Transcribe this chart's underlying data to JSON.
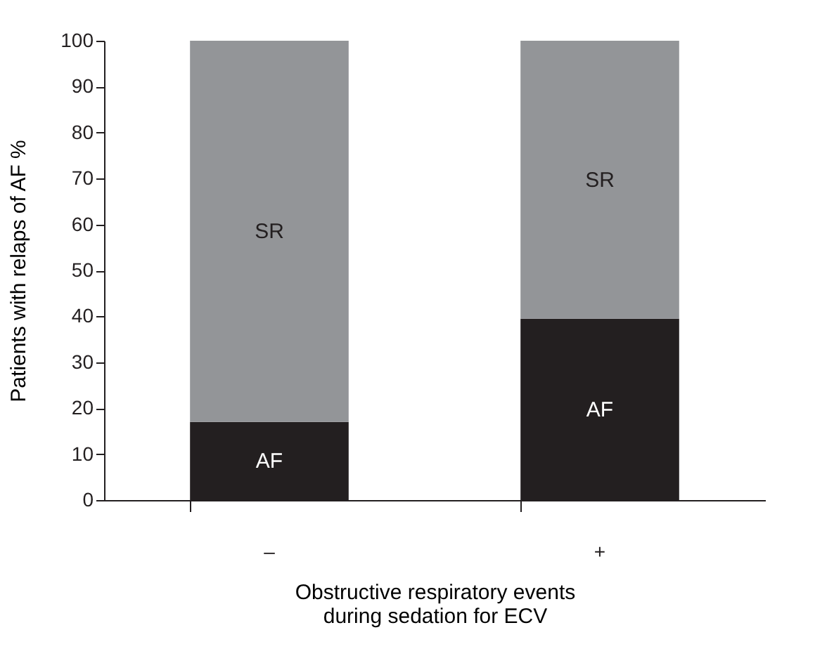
{
  "chart_data": {
    "type": "bar",
    "stacked": true,
    "categories": [
      "–",
      "+"
    ],
    "series": [
      {
        "name": "AF",
        "color": "#231f20",
        "values": [
          17,
          39.5
        ]
      },
      {
        "name": "SR",
        "color": "#939598",
        "values": [
          83,
          60.5
        ]
      }
    ],
    "ylabel": "Patients with relaps of AF %",
    "xlabel": "Obstructive respiratory events\nduring sedation for ECV",
    "ylim": [
      0,
      100
    ],
    "yticks": [
      0,
      10,
      20,
      30,
      40,
      50,
      60,
      70,
      80,
      90,
      100
    ],
    "grid": false,
    "legend": false
  }
}
